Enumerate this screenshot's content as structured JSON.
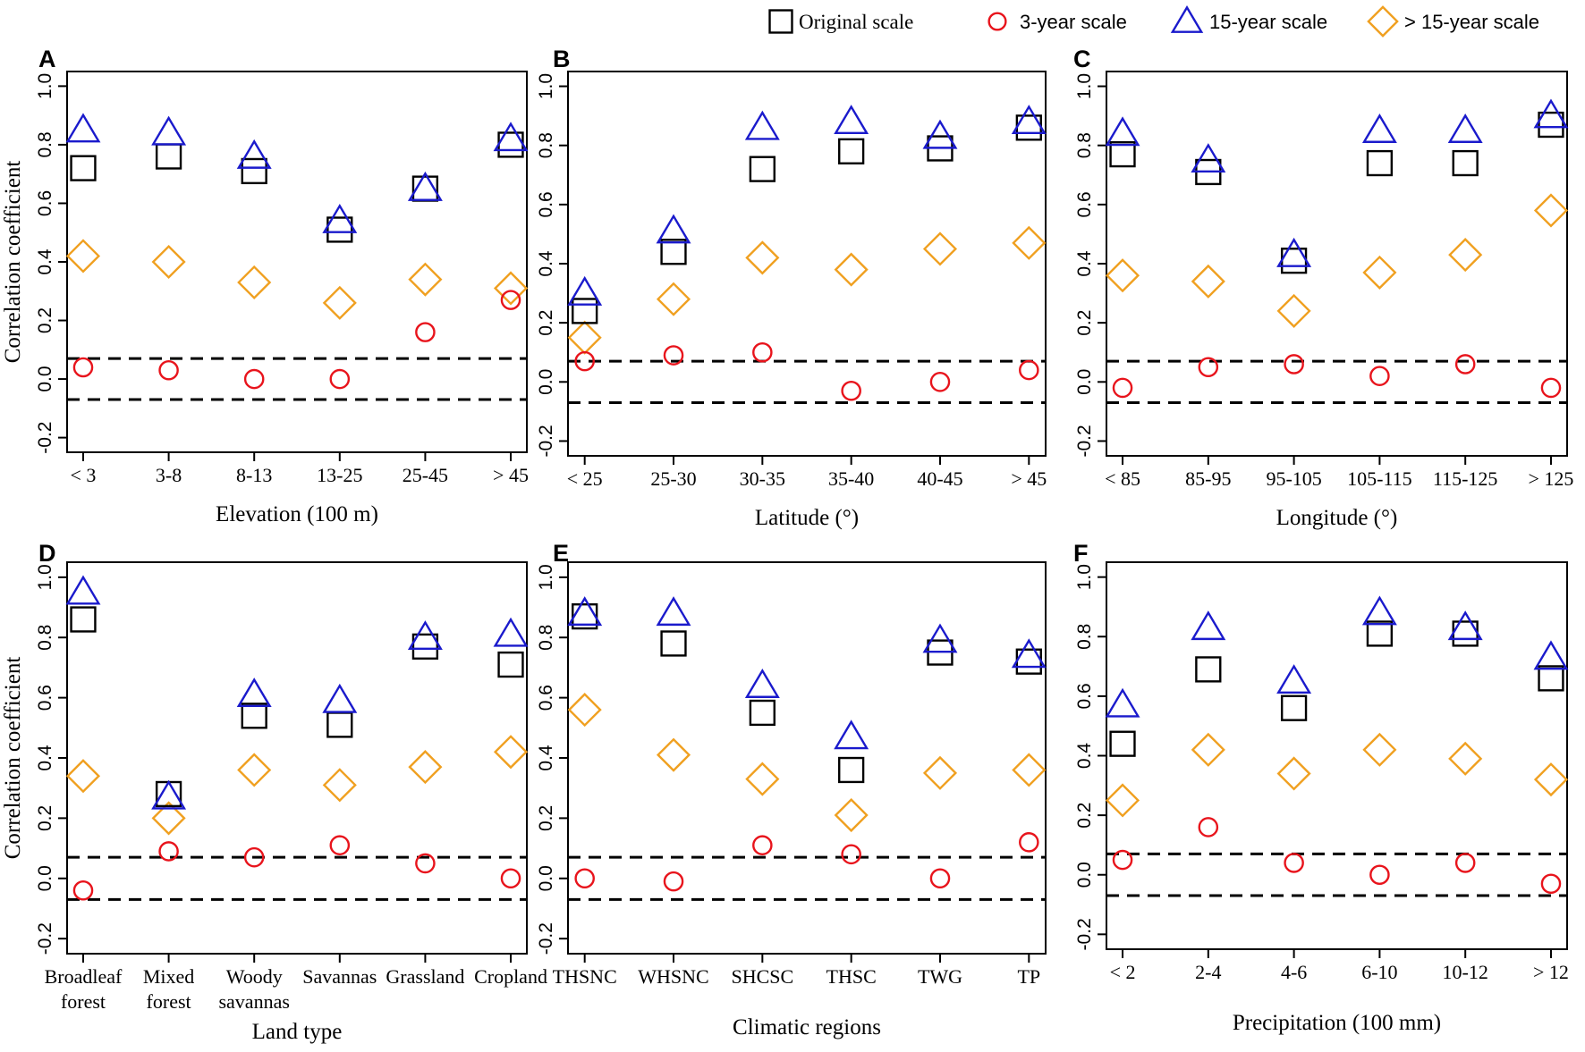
{
  "legend": {
    "items": [
      {
        "key": "original",
        "label": "Original scale",
        "marker": "square",
        "color": "#000000"
      },
      {
        "key": "y3",
        "label": "3-year scale",
        "marker": "circle",
        "color": "#e8141c"
      },
      {
        "key": "y15",
        "label": "15-year scale",
        "marker": "triangle",
        "color": "#1a1acc"
      },
      {
        "key": "gt15",
        "label": "> 15-year scale",
        "marker": "diamond",
        "color": "#f0a020"
      }
    ]
  },
  "significance_lines": [
    0.07,
    -0.07
  ],
  "chart_data": [
    {
      "panel": "A",
      "type": "scatter",
      "xlabel": "Elevation (100 m)",
      "ylabel": "Correlation coefficient",
      "ylim": [
        -0.25,
        1.05
      ],
      "yticks": [
        "-0.2",
        "0.0",
        "0.2",
        "0.4",
        "0.6",
        "0.8",
        "1.0"
      ],
      "ytick_values": [
        -0.2,
        0,
        0.2,
        0.4,
        0.6,
        0.8,
        1.0
      ],
      "categories": [
        [
          "< 3"
        ],
        [
          "3-8"
        ],
        [
          "8-13"
        ],
        [
          "13-25"
        ],
        [
          "25-45"
        ],
        [
          "> 45"
        ]
      ],
      "series": [
        {
          "key": "original",
          "values": [
            0.72,
            0.76,
            0.71,
            0.51,
            0.65,
            0.8
          ]
        },
        {
          "key": "y3",
          "values": [
            0.04,
            0.03,
            0.0,
            0.0,
            0.16,
            0.27
          ]
        },
        {
          "key": "y15",
          "values": [
            0.85,
            0.84,
            0.76,
            0.54,
            0.65,
            0.82
          ]
        },
        {
          "key": "gt15",
          "values": [
            0.42,
            0.4,
            0.33,
            0.26,
            0.34,
            0.31
          ]
        }
      ]
    },
    {
      "panel": "B",
      "type": "scatter",
      "xlabel": "Latitude (°)",
      "ylabel": "",
      "ylim": [
        -0.25,
        1.05
      ],
      "yticks": [
        "-0.2",
        "0.0",
        "0.2",
        "0.4",
        "0.6",
        "0.8",
        "1.0"
      ],
      "ytick_values": [
        -0.2,
        0,
        0.2,
        0.4,
        0.6,
        0.8,
        1.0
      ],
      "categories": [
        [
          "< 25"
        ],
        [
          "25-30"
        ],
        [
          "30-35"
        ],
        [
          "35-40"
        ],
        [
          "40-45"
        ],
        [
          "> 45"
        ]
      ],
      "series": [
        {
          "key": "original",
          "values": [
            0.24,
            0.44,
            0.72,
            0.78,
            0.79,
            0.86
          ]
        },
        {
          "key": "y3",
          "values": [
            0.07,
            0.09,
            0.1,
            -0.03,
            0.0,
            0.04
          ]
        },
        {
          "key": "y15",
          "values": [
            0.3,
            0.51,
            0.86,
            0.88,
            0.83,
            0.88
          ]
        },
        {
          "key": "gt15",
          "values": [
            0.15,
            0.28,
            0.42,
            0.38,
            0.45,
            0.47
          ]
        }
      ]
    },
    {
      "panel": "C",
      "type": "scatter",
      "xlabel": "Longitude (°)",
      "ylabel": "",
      "ylim": [
        -0.25,
        1.05
      ],
      "yticks": [
        "-0.2",
        "0.0",
        "0.2",
        "0.4",
        "0.6",
        "0.8",
        "1.0"
      ],
      "ytick_values": [
        -0.2,
        0,
        0.2,
        0.4,
        0.6,
        0.8,
        1.0
      ],
      "categories": [
        [
          "< 85"
        ],
        [
          "85-95"
        ],
        [
          "95-105"
        ],
        [
          "105-115"
        ],
        [
          "115-125"
        ],
        [
          "> 125"
        ]
      ],
      "series": [
        {
          "key": "original",
          "values": [
            0.77,
            0.71,
            0.41,
            0.74,
            0.74,
            0.87
          ]
        },
        {
          "key": "y3",
          "values": [
            -0.02,
            0.05,
            0.06,
            0.02,
            0.06,
            -0.02
          ]
        },
        {
          "key": "y15",
          "values": [
            0.84,
            0.75,
            0.43,
            0.85,
            0.85,
            0.9
          ]
        },
        {
          "key": "gt15",
          "values": [
            0.36,
            0.34,
            0.24,
            0.37,
            0.43,
            0.58
          ]
        }
      ]
    },
    {
      "panel": "D",
      "type": "scatter",
      "xlabel": "Land type",
      "ylabel": "Correlation coefficient",
      "ylim": [
        -0.25,
        1.05
      ],
      "yticks": [
        "-0.2",
        "0.0",
        "0.2",
        "0.4",
        "0.6",
        "0.8",
        "1.0"
      ],
      "ytick_values": [
        -0.2,
        0,
        0.2,
        0.4,
        0.6,
        0.8,
        1.0
      ],
      "categories": [
        [
          "Broadleaf",
          "forest"
        ],
        [
          "Mixed",
          "forest"
        ],
        [
          "Woody",
          "savannas"
        ],
        [
          "Savannas"
        ],
        [
          "Grassland"
        ],
        [
          "Cropland"
        ]
      ],
      "series": [
        {
          "key": "original",
          "values": [
            0.86,
            0.28,
            0.54,
            0.51,
            0.77,
            0.71
          ]
        },
        {
          "key": "y3",
          "values": [
            -0.04,
            0.09,
            0.07,
            0.11,
            0.05,
            0.0
          ]
        },
        {
          "key": "y15",
          "values": [
            0.95,
            0.27,
            0.61,
            0.59,
            0.8,
            0.81
          ]
        },
        {
          "key": "gt15",
          "values": [
            0.34,
            0.2,
            0.36,
            0.31,
            0.37,
            0.42
          ]
        }
      ]
    },
    {
      "panel": "E",
      "type": "scatter",
      "xlabel": "Climatic regions",
      "ylabel": "",
      "ylim": [
        -0.25,
        1.05
      ],
      "yticks": [
        "-0.2",
        "0.0",
        "0.2",
        "0.4",
        "0.6",
        "0.8",
        "1.0"
      ],
      "ytick_values": [
        -0.2,
        0,
        0.2,
        0.4,
        0.6,
        0.8,
        1.0
      ],
      "categories": [
        [
          "THSNC"
        ],
        [
          "WHSNC"
        ],
        [
          "SHCSC"
        ],
        [
          "THSC"
        ],
        [
          "TWG"
        ],
        [
          "TP"
        ]
      ],
      "series": [
        {
          "key": "original",
          "values": [
            0.87,
            0.78,
            0.55,
            0.36,
            0.75,
            0.72
          ]
        },
        {
          "key": "y3",
          "values": [
            0.0,
            -0.01,
            0.11,
            0.08,
            0.0,
            0.12
          ]
        },
        {
          "key": "y15",
          "values": [
            0.88,
            0.88,
            0.64,
            0.47,
            0.79,
            0.74
          ]
        },
        {
          "key": "gt15",
          "values": [
            0.56,
            0.41,
            0.33,
            0.21,
            0.35,
            0.36
          ]
        }
      ]
    },
    {
      "panel": "F",
      "type": "scatter",
      "xlabel": "Precipitation (100 mm)",
      "ylabel": "",
      "ylim": [
        -0.25,
        1.05
      ],
      "yticks": [
        "-0.2",
        "0.0",
        "0.2",
        "0.4",
        "0.6",
        "0.8",
        "1.0"
      ],
      "ytick_values": [
        -0.2,
        0,
        0.2,
        0.4,
        0.6,
        0.8,
        1.0
      ],
      "categories": [
        [
          "< 2"
        ],
        [
          "2-4"
        ],
        [
          "4-6"
        ],
        [
          "6-10"
        ],
        [
          "10-12"
        ],
        [
          "> 12"
        ]
      ],
      "series": [
        {
          "key": "original",
          "values": [
            0.44,
            0.69,
            0.56,
            0.81,
            0.81,
            0.66
          ]
        },
        {
          "key": "y3",
          "values": [
            0.05,
            0.16,
            0.04,
            0.0,
            0.04,
            -0.03
          ]
        },
        {
          "key": "y15",
          "values": [
            0.57,
            0.83,
            0.65,
            0.88,
            0.83,
            0.73
          ]
        },
        {
          "key": "gt15",
          "values": [
            0.25,
            0.42,
            0.34,
            0.42,
            0.39,
            0.32
          ]
        }
      ]
    }
  ]
}
